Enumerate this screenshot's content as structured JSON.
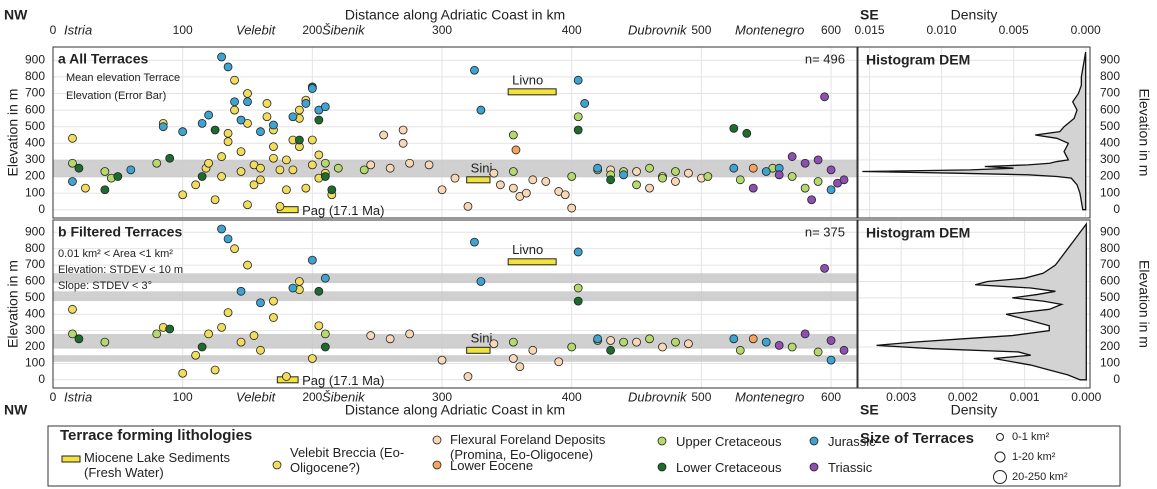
{
  "header": {
    "nw_top": "NW",
    "se_top": "SE",
    "nw_bottom": "NW",
    "se_bottom": "SE"
  },
  "chart_data": [
    {
      "type": "scatter",
      "title": "a All Terraces",
      "n_label": "n= 496",
      "annotations": [
        "Mean elevation Terrace",
        "Elevation (Error Bar)"
      ],
      "xlabel": "Distance along Adriatic Coast in km",
      "ylabel": "Elevation in m",
      "regions": [
        "Istria",
        "Velebit",
        "Šibenik",
        "Dubrovnik",
        "Montenegro"
      ],
      "xlim": [
        0,
        620
      ],
      "ylim": [
        -50,
        980
      ],
      "xticks": [
        0,
        100,
        200,
        300,
        400,
        500,
        600
      ],
      "yticks": [
        0,
        100,
        200,
        300,
        400,
        500,
        600,
        700,
        800,
        900
      ],
      "grid": true,
      "bands": [
        [
          195,
          300
        ]
      ],
      "legend_title": "Terrace forming lithologies",
      "size_title": "Size of Terraces",
      "size_labels": [
        "0-1 km²",
        "1-20 km²",
        "20-250 km²"
      ],
      "series": [
        {
          "name": "Miocene Lake Sediments (Fresh Water)",
          "color": "#f2e33c",
          "marker": "bar",
          "x_start": [
            351,
            319,
            173
          ],
          "x_end": [
            388,
            337,
            189
          ],
          "values": [
            710,
            180,
            0
          ],
          "labels": [
            "Livno",
            "Sinj",
            "Pag (17.1 Ma)"
          ]
        },
        {
          "name": "Velebit Breccia (Eo-Oligocene?)",
          "color": "#f2dc5d",
          "x": [
            15,
            25,
            85,
            100,
            110,
            118,
            125,
            130,
            135,
            140,
            145,
            150,
            155,
            160,
            165,
            170,
            175,
            180,
            185,
            190,
            195,
            200,
            205,
            210,
            140,
            150,
            160,
            170,
            180,
            190,
            200,
            130,
            145,
            155,
            165,
            175,
            185,
            195,
            205,
            215,
            120,
            135,
            150,
            170,
            190
          ],
          "values": [
            430,
            130,
            520,
            90,
            150,
            250,
            60,
            320,
            410,
            600,
            230,
            520,
            270,
            180,
            640,
            380,
            20,
            300,
            240,
            550,
            130,
            420,
            330,
            220,
            780,
            700,
            250,
            480,
            120,
            600,
            270,
            200,
            350,
            150,
            560,
            240,
            420,
            660,
            190,
            90,
            280,
            460,
            30,
            310,
            380
          ]
        },
        {
          "name": "Flexural Foreland Deposits (Promina, Eo-Oligocene)",
          "color": "#f7d7b5",
          "x": [
            245,
            260,
            275,
            290,
            255,
            270,
            340,
            345,
            355,
            360,
            365,
            370,
            380,
            390,
            395,
            300,
            310,
            320,
            400,
            270,
            430,
            450,
            470,
            480,
            490,
            500,
            460
          ],
          "values": [
            270,
            250,
            280,
            270,
            450,
            480,
            220,
            150,
            130,
            80,
            100,
            180,
            170,
            110,
            90,
            120,
            190,
            20,
            10,
            400,
            240,
            230,
            200,
            170,
            220,
            190,
            130
          ]
        },
        {
          "name": "Lower Eocene",
          "color": "#f4a460",
          "x": [
            357,
            540
          ],
          "values": [
            360,
            250
          ]
        },
        {
          "name": "Upper Cretaceous",
          "color": "#b5d96b",
          "x": [
            15,
            40,
            45,
            80,
            210,
            220,
            240,
            355,
            355,
            400,
            405,
            420,
            430,
            440,
            450,
            460,
            470,
            480,
            505,
            530,
            555,
            570,
            580,
            590
          ],
          "values": [
            280,
            230,
            190,
            280,
            280,
            250,
            240,
            450,
            230,
            200,
            560,
            240,
            210,
            230,
            150,
            250,
            190,
            230,
            200,
            180,
            250,
            200,
            130,
            170
          ]
        },
        {
          "name": "Lower Cretaceous",
          "color": "#1e6b2f",
          "x": [
            20,
            40,
            50,
            90,
            115,
            125,
            190,
            200,
            205,
            210,
            215,
            405,
            430,
            525,
            535
          ],
          "values": [
            250,
            120,
            200,
            310,
            200,
            480,
            420,
            740,
            540,
            200,
            120,
            480,
            180,
            490,
            460
          ]
        },
        {
          "name": "Jurassic",
          "color": "#3ea3d1",
          "x": [
            15,
            60,
            85,
            100,
            115,
            120,
            130,
            135,
            140,
            145,
            150,
            160,
            170,
            185,
            195,
            200,
            205,
            210,
            325,
            330,
            405,
            410,
            420,
            440,
            525,
            550,
            560,
            600
          ],
          "values": [
            170,
            240,
            500,
            470,
            520,
            570,
            920,
            860,
            650,
            540,
            650,
            470,
            510,
            560,
            640,
            730,
            600,
            620,
            840,
            600,
            780,
            640,
            250,
            210,
            250,
            230,
            250,
            120
          ]
        },
        {
          "name": "Triassic",
          "color": "#8e4fb5",
          "x": [
            540,
            560,
            570,
            580,
            590,
            600,
            605,
            610,
            595,
            585
          ],
          "values": [
            130,
            210,
            320,
            280,
            300,
            240,
            160,
            180,
            680,
            60
          ]
        }
      ]
    },
    {
      "type": "area",
      "title": "Histogram DEM",
      "xlabel": "Density",
      "ylabel": "Elevation in m",
      "xlim": [
        0.0158,
        -0.0003
      ],
      "ylim": [
        -50,
        980
      ],
      "xticks": [
        {
          "value": 0.015,
          "label": "0.015"
        },
        {
          "value": 0.01,
          "label": "0.010"
        },
        {
          "value": 0.005,
          "label": "0.005"
        },
        {
          "value": 0,
          "label": "0.000"
        }
      ],
      "yticks": [
        0,
        100,
        200,
        300,
        400,
        500,
        600,
        700,
        800,
        900
      ],
      "grid": true,
      "color": "#d3d3d3",
      "y": [
        0,
        50,
        100,
        150,
        190,
        200,
        210,
        220,
        230,
        240,
        250,
        260,
        270,
        280,
        290,
        300,
        350,
        400,
        430,
        450,
        470,
        500,
        550,
        600,
        650,
        700,
        750,
        800,
        850,
        900,
        950
      ],
      "values": [
        0.0002,
        0.0003,
        0.0004,
        0.0006,
        0.001,
        0.002,
        0.004,
        0.009,
        0.0155,
        0.008,
        0.005,
        0.007,
        0.004,
        0.0025,
        0.002,
        0.0012,
        0.0015,
        0.0012,
        0.002,
        0.0035,
        0.0018,
        0.0015,
        0.0008,
        0.0006,
        0.0009,
        0.0005,
        0.0003,
        0.0003,
        0.0002,
        0.0001,
        0
      ]
    },
    {
      "type": "scatter",
      "title": "b Filtered Terraces",
      "n_label": "n= 375",
      "annotations": [
        "0.01 km² < Area <1 km²",
        "Elevation: STDEV < 10 m",
        "Slope: STDEV < 3°"
      ],
      "xlabel": "Distance along Adriatic Coast in km",
      "ylabel": "Elevation in m",
      "regions": [
        "Istria",
        "Velebit",
        "Šibenik",
        "Dubrovnik",
        "Montenegro"
      ],
      "xlim": [
        0,
        620
      ],
      "ylim": [
        -50,
        975
      ],
      "xticks": [
        0,
        100,
        200,
        300,
        400,
        500,
        600
      ],
      "yticks": [
        0,
        100,
        200,
        300,
        400,
        500,
        600,
        700,
        800,
        900
      ],
      "grid": true,
      "bands": [
        [
          590,
          650
        ],
        [
          480,
          540
        ],
        [
          190,
          280
        ],
        [
          110,
          150
        ]
      ],
      "series": [
        {
          "color": "#f2e33c",
          "marker": "bar",
          "x_start": [
            351,
            319,
            173
          ],
          "x_end": [
            388,
            337,
            189
          ],
          "values": [
            720,
            180,
            0
          ],
          "labels": [
            "Livno",
            "Sinj",
            "Pag (17.1 Ma)"
          ]
        },
        {
          "color": "#f2dc5d",
          "x": [
            15,
            85,
            100,
            110,
            125,
            130,
            135,
            145,
            155,
            160,
            170,
            180,
            190,
            200,
            205,
            150,
            170,
            190,
            140,
            120
          ],
          "values": [
            430,
            320,
            40,
            150,
            60,
            320,
            410,
            230,
            270,
            180,
            380,
            20,
            550,
            130,
            330,
            700,
            480,
            600,
            800,
            280
          ]
        },
        {
          "color": "#f7d7b5",
          "x": [
            245,
            260,
            275,
            340,
            355,
            360,
            370,
            390,
            300,
            320,
            430,
            450,
            470,
            490
          ],
          "values": [
            270,
            250,
            280,
            220,
            130,
            80,
            180,
            110,
            120,
            20,
            240,
            230,
            200,
            220
          ]
        },
        {
          "color": "#f4a460",
          "x": [
            540
          ],
          "values": [
            250
          ]
        },
        {
          "color": "#b5d96b",
          "x": [
            15,
            40,
            80,
            210,
            355,
            400,
            405,
            420,
            440,
            460,
            480,
            530,
            570,
            590
          ],
          "values": [
            280,
            230,
            280,
            280,
            230,
            200,
            560,
            240,
            230,
            250,
            230,
            180,
            200,
            170
          ]
        },
        {
          "color": "#1e6b2f",
          "x": [
            20,
            90,
            115,
            205,
            210,
            405,
            430
          ],
          "values": [
            250,
            310,
            200,
            540,
            200,
            480,
            180
          ]
        },
        {
          "color": "#3ea3d1",
          "x": [
            130,
            135,
            145,
            160,
            185,
            200,
            210,
            325,
            330,
            405,
            420,
            525,
            550,
            600
          ],
          "values": [
            920,
            860,
            540,
            470,
            560,
            730,
            620,
            840,
            600,
            780,
            250,
            250,
            230,
            120
          ]
        },
        {
          "color": "#8e4fb5",
          "x": [
            560,
            580,
            600,
            610,
            595
          ],
          "values": [
            210,
            280,
            240,
            180,
            680
          ]
        }
      ]
    },
    {
      "type": "area",
      "title": "Histogram DEM",
      "xlabel": "Density",
      "ylabel": "Elevation in m",
      "xlim": [
        0.0037,
        -6e-05
      ],
      "ylim": [
        -50,
        975
      ],
      "xticks": [
        0.003,
        0.002,
        0.001,
        {
          "value": 0,
          "label": "0.000"
        }
      ],
      "yticks": [
        0,
        100,
        200,
        300,
        400,
        500,
        600,
        700,
        800,
        900
      ],
      "grid": true,
      "color": "#d3d3d3",
      "y": [
        0,
        30,
        60,
        90,
        110,
        130,
        150,
        170,
        190,
        210,
        230,
        250,
        270,
        300,
        330,
        360,
        400,
        430,
        460,
        480,
        500,
        520,
        540,
        560,
        580,
        600,
        620,
        650,
        700,
        750,
        800,
        850,
        900,
        950
      ],
      "values": [
        0.0001,
        0.0003,
        0.0006,
        0.0009,
        0.0012,
        0.0015,
        0.0009,
        0.0011,
        0.0025,
        0.0034,
        0.0028,
        0.002,
        0.0012,
        0.0006,
        0.0006,
        0.0009,
        0.0013,
        0.0006,
        0.0004,
        0.0007,
        0.0012,
        0.0008,
        0.0005,
        0.0009,
        0.0018,
        0.0016,
        0.001,
        0.0007,
        0.0005,
        0.0004,
        0.0003,
        0.0002,
        0.0001,
        0
      ]
    }
  ]
}
